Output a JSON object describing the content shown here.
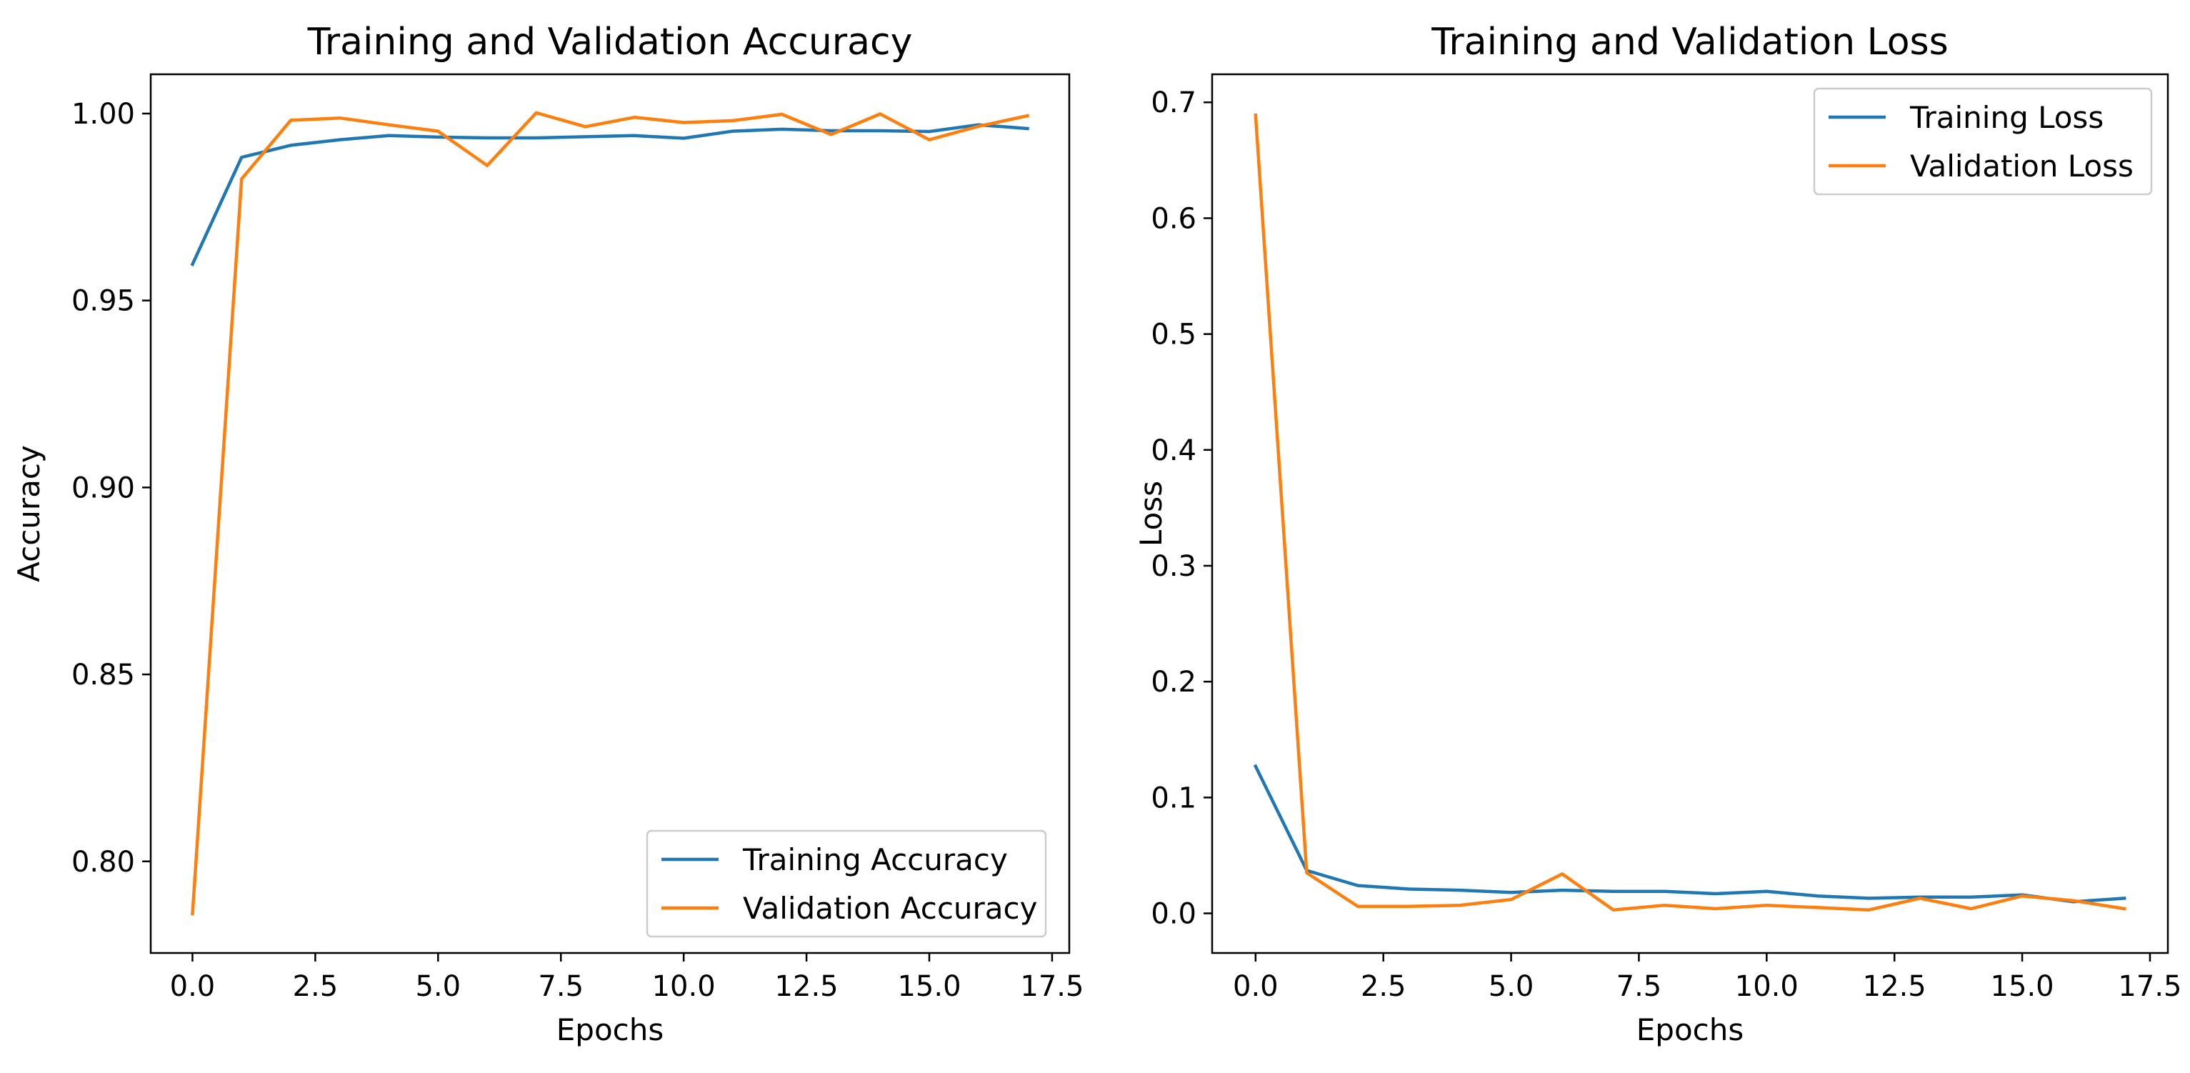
{
  "figure": {
    "colors": {
      "training": "#1f77b4",
      "validation": "#ff7f0e",
      "axis": "#000000",
      "legend_border": "#cccccc"
    }
  },
  "chart_data": [
    {
      "type": "line",
      "title": "Training and Validation Accuracy",
      "xlabel": "Epochs",
      "ylabel": "Accuracy",
      "xlim": [
        -0.85,
        17.85
      ],
      "ylim": [
        0.7755,
        1.0105
      ],
      "xticks": [
        0,
        2.5,
        5,
        7.5,
        10,
        12.5,
        15,
        17.5
      ],
      "xtick_labels": [
        "0.0",
        "2.5",
        "5.0",
        "7.5",
        "10.0",
        "12.5",
        "15.0",
        "17.5"
      ],
      "yticks": [
        0.8,
        0.85,
        0.9,
        0.95,
        1.0
      ],
      "ytick_labels": [
        "0.80",
        "0.85",
        "0.90",
        "0.95",
        "1.00"
      ],
      "legend_position": "lower-right",
      "x": [
        0,
        1,
        2,
        3,
        4,
        5,
        6,
        7,
        8,
        9,
        10,
        11,
        12,
        13,
        14,
        15,
        16,
        17
      ],
      "series": [
        {
          "name": "Training Accuracy",
          "color": "#1f77b4",
          "values": [
            0.9597,
            0.9883,
            0.9915,
            0.993,
            0.9941,
            0.9937,
            0.9935,
            0.9935,
            0.9938,
            0.9941,
            0.9934,
            0.9953,
            0.9958,
            0.9954,
            0.9954,
            0.9952,
            0.997,
            0.996
          ]
        },
        {
          "name": "Validation Accuracy",
          "color": "#ff7f0e",
          "values": [
            0.786,
            0.9825,
            0.9982,
            0.9988,
            0.997,
            0.9953,
            0.9861,
            1.0002,
            0.9965,
            0.999,
            0.9976,
            0.9981,
            0.9998,
            0.9944,
            0.9999,
            0.993,
            0.9966,
            0.9994
          ]
        }
      ]
    },
    {
      "type": "line",
      "title": "Training and Validation Loss",
      "xlabel": "Epochs",
      "ylabel": "Loss",
      "xlim": [
        -0.85,
        17.85
      ],
      "ylim": [
        -0.0342,
        0.7242
      ],
      "xticks": [
        0,
        2.5,
        5,
        7.5,
        10,
        12.5,
        15,
        17.5
      ],
      "xtick_labels": [
        "0.0",
        "2.5",
        "5.0",
        "7.5",
        "10.0",
        "12.5",
        "15.0",
        "17.5"
      ],
      "yticks": [
        0,
        0.1,
        0.2,
        0.3,
        0.4,
        0.5,
        0.6,
        0.7
      ],
      "ytick_labels": [
        "0.0",
        "0.1",
        "0.2",
        "0.3",
        "0.4",
        "0.5",
        "0.6",
        "0.7"
      ],
      "legend_position": "upper-right",
      "x": [
        0,
        1,
        2,
        3,
        4,
        5,
        6,
        7,
        8,
        9,
        10,
        11,
        12,
        13,
        14,
        15,
        16,
        17
      ],
      "series": [
        {
          "name": "Training Loss",
          "color": "#1f77b4",
          "values": [
            0.127,
            0.037,
            0.024,
            0.021,
            0.02,
            0.018,
            0.02,
            0.019,
            0.019,
            0.017,
            0.019,
            0.015,
            0.013,
            0.014,
            0.014,
            0.016,
            0.01,
            0.013
          ]
        },
        {
          "name": "Validation Loss",
          "color": "#ff7f0e",
          "values": [
            0.689,
            0.035,
            0.006,
            0.006,
            0.007,
            0.012,
            0.034,
            0.003,
            0.007,
            0.004,
            0.007,
            0.005,
            0.003,
            0.013,
            0.004,
            0.015,
            0.011,
            0.004
          ]
        }
      ]
    }
  ]
}
